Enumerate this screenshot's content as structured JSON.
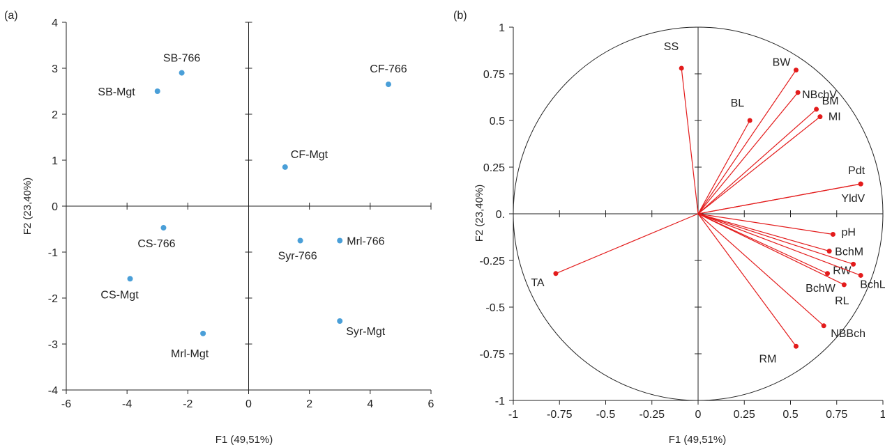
{
  "chart_data": [
    {
      "panel_label": "(a)",
      "type": "scatter",
      "xlabel": "F1 (49,51%)",
      "ylabel": "F2 (23,40%)",
      "xlim": [
        -6,
        6
      ],
      "ylim": [
        -4,
        4
      ],
      "x_ticks": [
        -6,
        -4,
        -2,
        0,
        2,
        4,
        6
      ],
      "y_ticks": [
        -4,
        -3,
        -2,
        -1,
        0,
        1,
        2,
        3,
        4
      ],
      "point_color": "#4a9fd8",
      "points": [
        {
          "label": "SB-766",
          "x": -2.2,
          "y": 2.9
        },
        {
          "label": "SB-Mgt",
          "x": -3.0,
          "y": 2.5
        },
        {
          "label": "CF-766",
          "x": 4.6,
          "y": 2.65
        },
        {
          "label": "CF-Mgt",
          "x": 1.2,
          "y": 0.85
        },
        {
          "label": "CS-766",
          "x": -2.8,
          "y": -0.47
        },
        {
          "label": "Syr-766",
          "x": 1.7,
          "y": -0.75
        },
        {
          "label": "Mrl-766",
          "x": 3.0,
          "y": -0.75
        },
        {
          "label": "CS-Mgt",
          "x": -3.9,
          "y": -1.58
        },
        {
          "label": "Syr-Mgt",
          "x": 3.0,
          "y": -2.5
        },
        {
          "label": "Mrl-Mgt",
          "x": -1.5,
          "y": -2.77
        }
      ]
    },
    {
      "panel_label": "(b)",
      "type": "scatter",
      "subtype": "correlation-circle",
      "xlabel": "F1 (49,51%)",
      "ylabel": "F2 (23,40%)",
      "xlim": [
        -1,
        1
      ],
      "ylim": [
        -1,
        1
      ],
      "x_ticks": [
        "-1",
        "-0.75",
        "-0.5",
        "-0.25",
        "0",
        "0.25",
        "0.5",
        "0.75",
        "1"
      ],
      "y_ticks": [
        "-1",
        "-0.75",
        "-0.5",
        "-0.25",
        "0.",
        "0.25",
        "0.5",
        "0.75",
        "1"
      ],
      "vector_color": "#e31b1b",
      "vectors": [
        {
          "label": "SS",
          "x": -0.09,
          "y": 0.78
        },
        {
          "label": "BW",
          "x": 0.53,
          "y": 0.77
        },
        {
          "label": "NBchV",
          "x": 0.54,
          "y": 0.65
        },
        {
          "label": "BM",
          "x": 0.64,
          "y": 0.56
        },
        {
          "label": "MI",
          "x": 0.66,
          "y": 0.52
        },
        {
          "label": "BL",
          "x": 0.28,
          "y": 0.5
        },
        {
          "label": "Pdt",
          "x": 0.88,
          "y": 0.16
        },
        {
          "label": "YldV",
          "x": 0.88,
          "y": 0.16
        },
        {
          "label": "pH",
          "x": 0.73,
          "y": -0.11
        },
        {
          "label": "BchM",
          "x": 0.71,
          "y": -0.2
        },
        {
          "label": "RW",
          "x": 0.84,
          "y": -0.27
        },
        {
          "label": "BchL",
          "x": 0.88,
          "y": -0.33
        },
        {
          "label": "BchW",
          "x": 0.7,
          "y": -0.32
        },
        {
          "label": "RL",
          "x": 0.79,
          "y": -0.38
        },
        {
          "label": "NBBch",
          "x": 0.68,
          "y": -0.6
        },
        {
          "label": "RM",
          "x": 0.53,
          "y": -0.71
        },
        {
          "label": "TA",
          "x": -0.77,
          "y": -0.32
        }
      ]
    }
  ]
}
